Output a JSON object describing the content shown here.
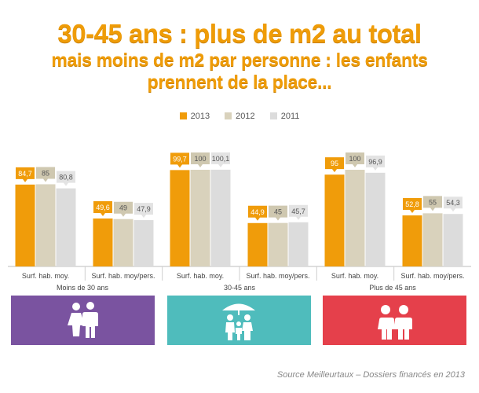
{
  "title": {
    "line1": "30-45 ans : plus de m2 au total",
    "line2a": "mais moins de m2 par personne : les enfants",
    "line2b": "prennent de la place..."
  },
  "colors": {
    "y2013": "#f09c0a",
    "y2012": "#d9d2bc",
    "y2011": "#dcdcdc"
  },
  "chart_data": {
    "type": "bar",
    "categories": [
      "Surf. hab. moy.",
      "Surf. hab. moy/pers.",
      "Surf. hab. moy.",
      "Surf. hab. moy/pers.",
      "Surf. hab. moy.",
      "Surf. hab. moy/pers."
    ],
    "groups": [
      "Moins de 30 ans",
      "30-45 ans",
      "Plus de 45 ans"
    ],
    "series": [
      {
        "name": "2013",
        "values": [
          84.7,
          49.6,
          99.7,
          44.9,
          95,
          52.8
        ],
        "labels": [
          "84,7",
          "49,6",
          "99,7",
          "44,9",
          "95",
          "52,8"
        ]
      },
      {
        "name": "2012",
        "values": [
          85,
          49,
          100,
          45,
          100,
          55
        ],
        "labels": [
          "85",
          "49",
          "100",
          "45",
          "100",
          "55"
        ]
      },
      {
        "name": "2011",
        "values": [
          80.8,
          47.9,
          100.1,
          45.7,
          96.9,
          54.3
        ],
        "labels": [
          "80,8",
          "47,9",
          "100,1",
          "45,7",
          "96,9",
          "54,3"
        ]
      }
    ],
    "legend_position": "top-center",
    "ylim": [
      0,
      105
    ]
  },
  "groups": {
    "g1": {
      "label": "Moins de 30 ans",
      "color": "#7a53a0",
      "icon": "young-couple-icon"
    },
    "g2": {
      "label": "30-45 ans",
      "color": "#4fbcbc",
      "icon": "family-umbrella-icon"
    },
    "g3": {
      "label": "Plus de 45 ans",
      "color": "#e5404b",
      "icon": "senior-couple-icon"
    }
  },
  "source": "Source Meilleurtaux – Dossiers financés en 2013"
}
